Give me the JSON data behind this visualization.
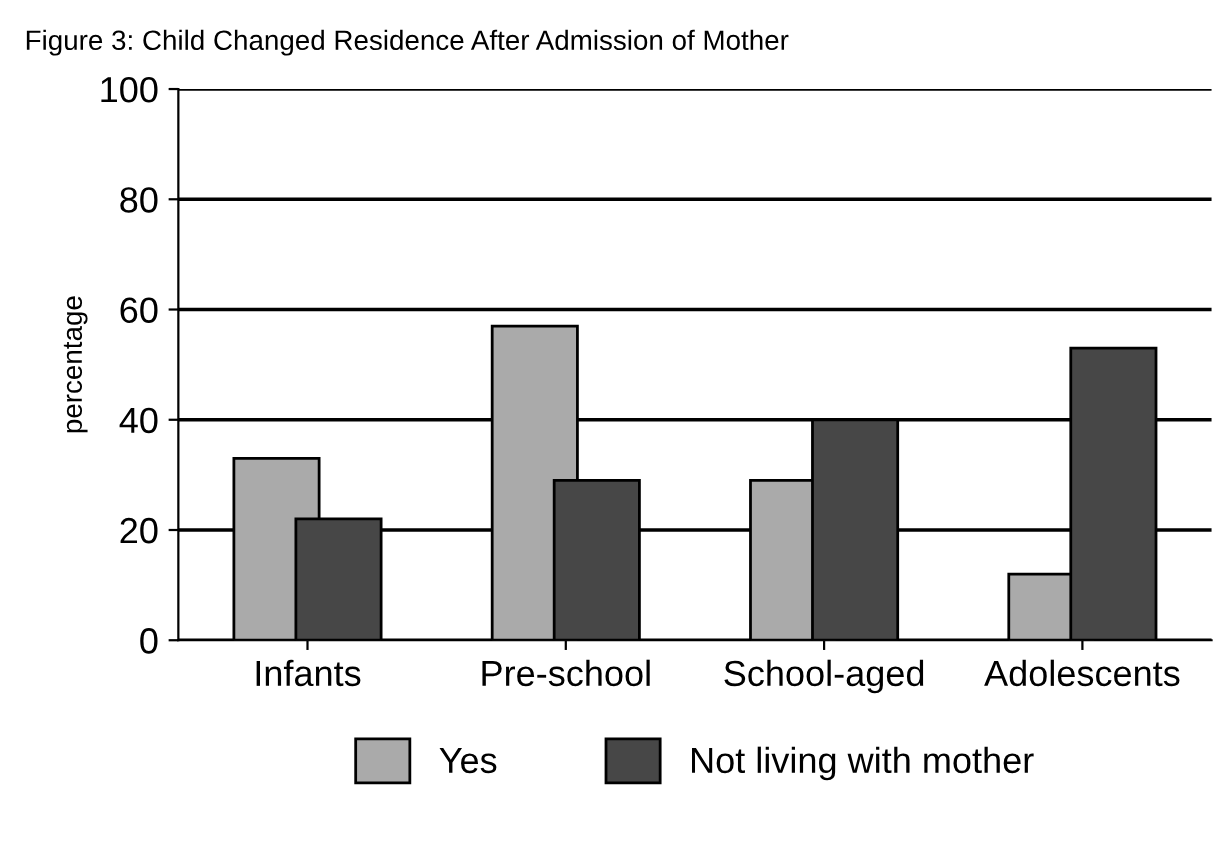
{
  "chart_data": {
    "type": "bar",
    "title": "Figure 3: Child Changed Residence After Admission of Mother",
    "ylabel": "percentage",
    "categories": [
      "Infants",
      "Pre-school",
      "School-aged",
      "Adolescents"
    ],
    "series": [
      {
        "name": "Yes",
        "color": "#aaaaaa",
        "values": [
          33,
          57,
          29,
          12
        ]
      },
      {
        "name": "Not living with mother",
        "color": "#474747",
        "values": [
          22,
          29,
          40,
          53
        ]
      }
    ],
    "ylim": [
      0,
      100
    ],
    "yticks": [
      0,
      20,
      40,
      60,
      80,
      100
    ],
    "grid": "y",
    "legend": "bottom"
  }
}
